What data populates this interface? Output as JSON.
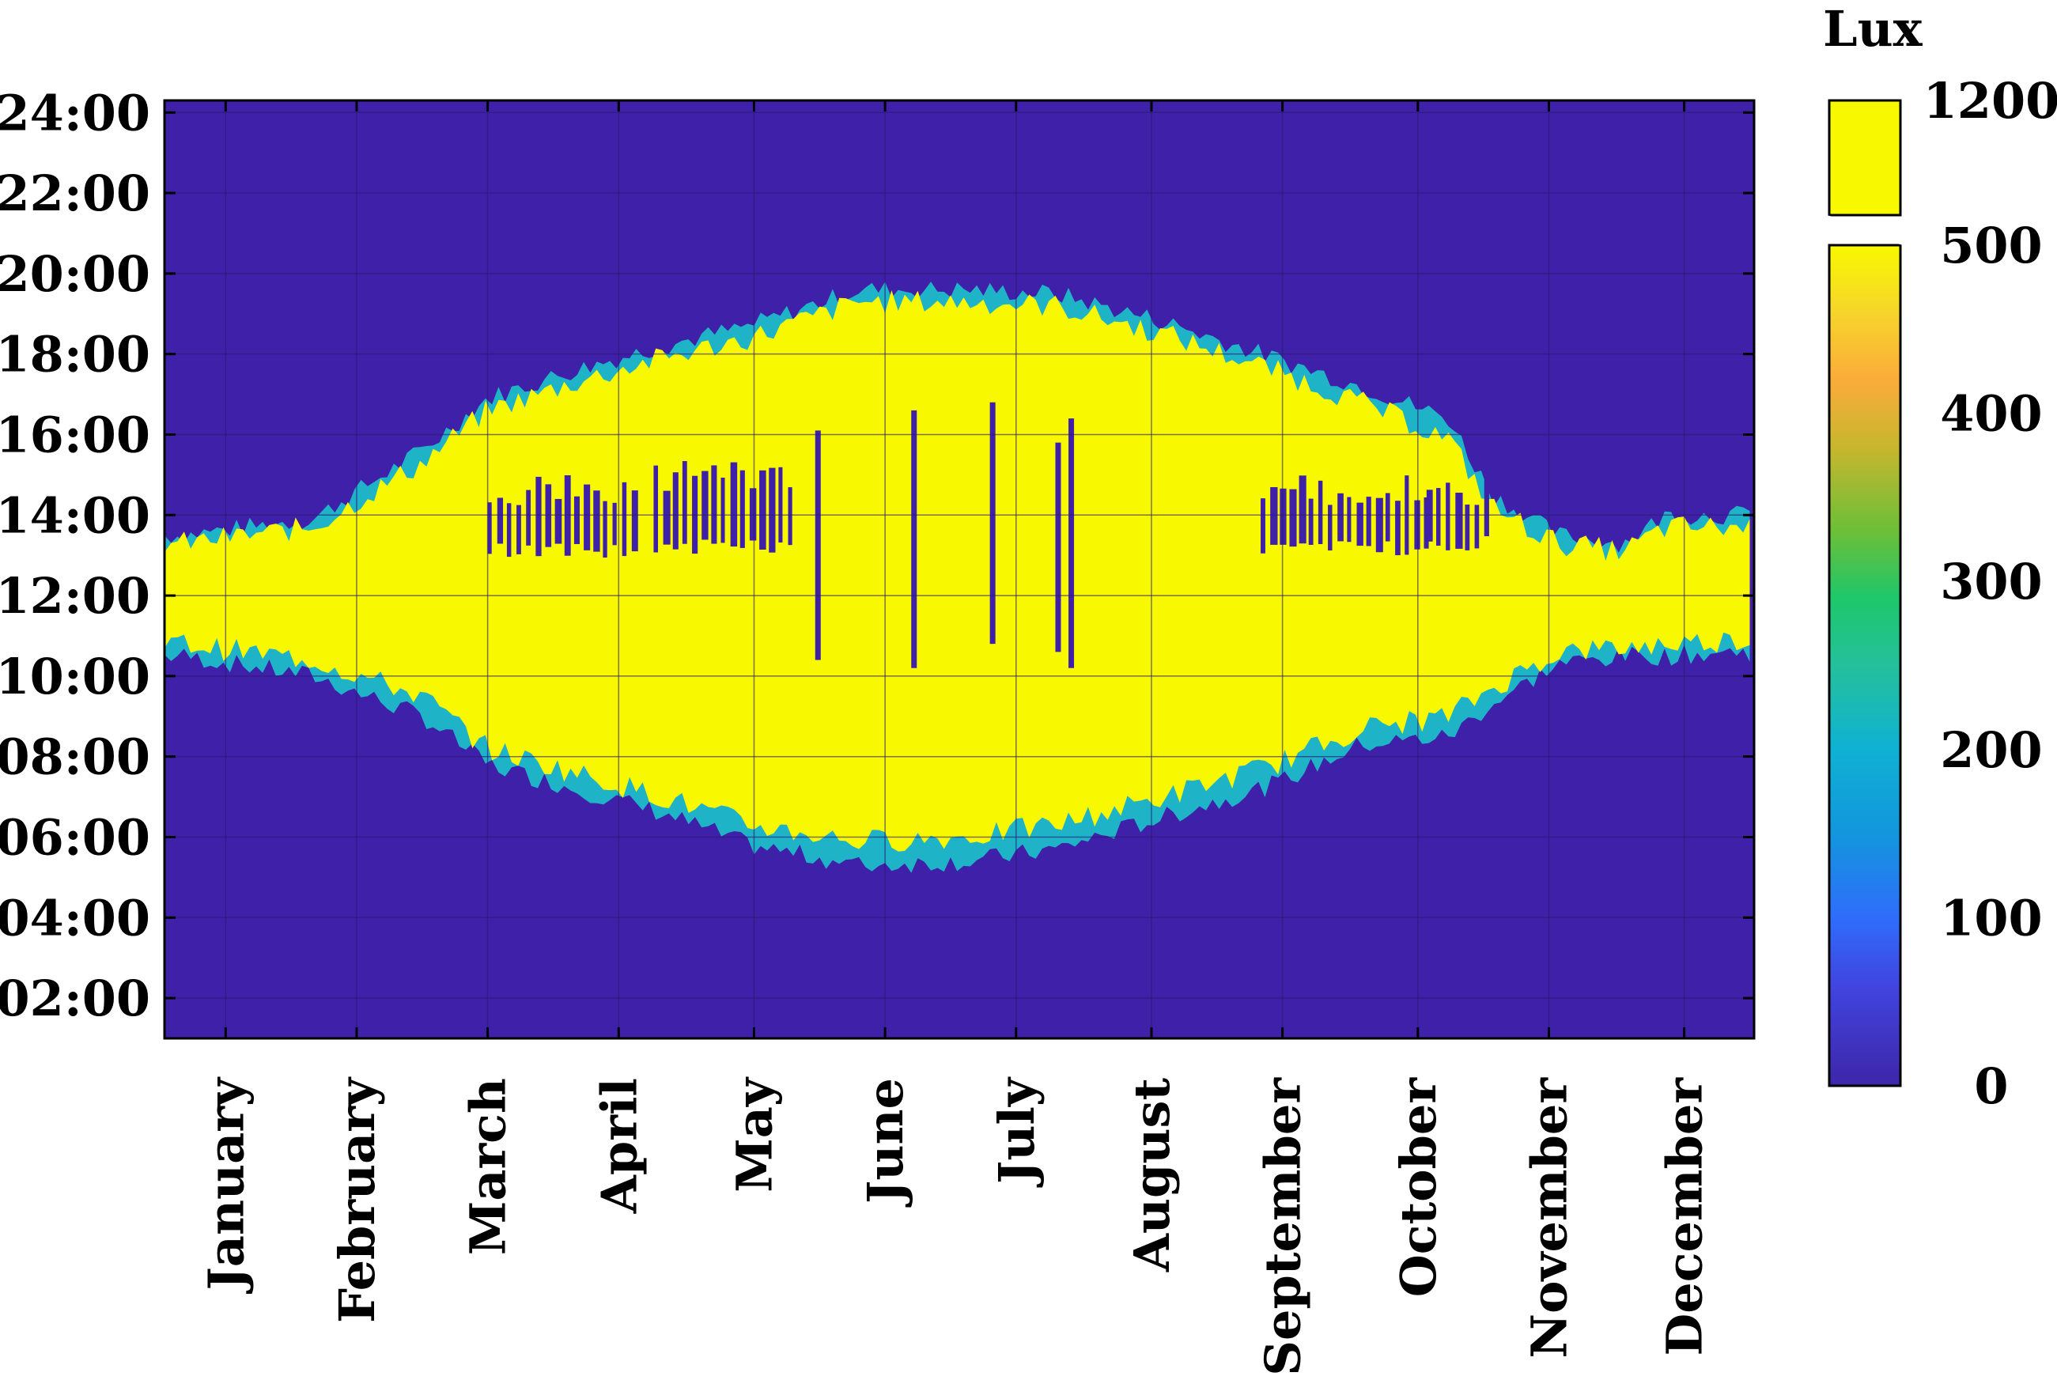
{
  "chart_data": {
    "type": "heatmap",
    "title": "",
    "xlabel": "",
    "ylabel": "",
    "x_tick_labels": [
      "January",
      "February",
      "March",
      "April",
      "May",
      "June",
      "July",
      "August",
      "September",
      "October",
      "November",
      "December"
    ],
    "y_tick_labels": [
      "02:00",
      "04:00",
      "06:00",
      "08:00",
      "10:00",
      "12:00",
      "14:00",
      "16:00",
      "18:00",
      "20:00",
      "22:00",
      "24:00"
    ],
    "y_ticks_hours": [
      2,
      4,
      6,
      8,
      10,
      12,
      14,
      16,
      18,
      20,
      22,
      24
    ],
    "ylim_hours": [
      1.0,
      24.3
    ],
    "xlim_days": [
      1,
      365
    ],
    "grid": true,
    "colorbar": {
      "label": "Lux",
      "ticks": [
        "0",
        "100",
        "200",
        "300",
        "400",
        "500",
        "1200"
      ],
      "tick_values": [
        0,
        100,
        200,
        300,
        400,
        500,
        1200
      ],
      "break_between": [
        500,
        1200
      ],
      "colormap": "parula"
    },
    "colors": {
      "background": "#3f20a8",
      "low_light": "#1fb3c8",
      "high_light": "#f8f800",
      "grid": "#2a1a70"
    },
    "daylight_envelope": {
      "description": "approximate sunrise/sunset (hours) at sample days",
      "days": [
        5,
        35,
        60,
        75,
        95,
        115,
        135,
        160,
        185,
        205,
        230,
        255,
        275,
        295,
        305,
        320,
        335,
        345,
        360
      ],
      "start_hour": [
        10.5,
        10.0,
        9.0,
        7.8,
        7.2,
        6.6,
        5.8,
        5.3,
        5.4,
        5.7,
        6.5,
        7.3,
        8.3,
        8.5,
        9.3,
        10.3,
        10.5,
        10.5,
        10.6
      ],
      "end_hour": [
        13.5,
        13.9,
        15.6,
        16.9,
        17.6,
        18.2,
        18.7,
        19.6,
        19.6,
        19.5,
        18.8,
        17.9,
        17.2,
        16.4,
        14.5,
        13.5,
        13.3,
        14.0,
        14.0
      ]
    },
    "yellow_core": {
      "description": "approximate bright (>500 lux) region bounds (hours)",
      "days": [
        5,
        35,
        60,
        75,
        95,
        115,
        135,
        160,
        185,
        205,
        230,
        255,
        275,
        295,
        305,
        320,
        335,
        345,
        360
      ],
      "start_hour": [
        10.8,
        10.4,
        9.5,
        8.2,
        7.6,
        7.0,
        6.3,
        5.9,
        6.0,
        6.3,
        7.0,
        7.8,
        8.7,
        9.0,
        9.7,
        10.6,
        10.7,
        10.8,
        10.9
      ],
      "end_hour": [
        13.3,
        13.7,
        15.3,
        16.6,
        17.3,
        17.9,
        18.4,
        19.3,
        19.3,
        19.2,
        18.5,
        17.6,
        16.8,
        15.9,
        14.2,
        13.3,
        13.1,
        13.7,
        13.7
      ]
    },
    "dark_midday_gaps": {
      "description": "approximate periods with reduced light around midday (hours)",
      "days_ranges": [
        [
          75,
          110
        ],
        [
          113,
          145
        ],
        [
          252,
          290
        ],
        [
          290,
          305
        ]
      ],
      "start_hour": [
        13.1,
        13.2,
        13.2,
        13.3
      ],
      "end_hour": [
        14.6,
        15.0,
        14.6,
        14.5
      ]
    }
  }
}
